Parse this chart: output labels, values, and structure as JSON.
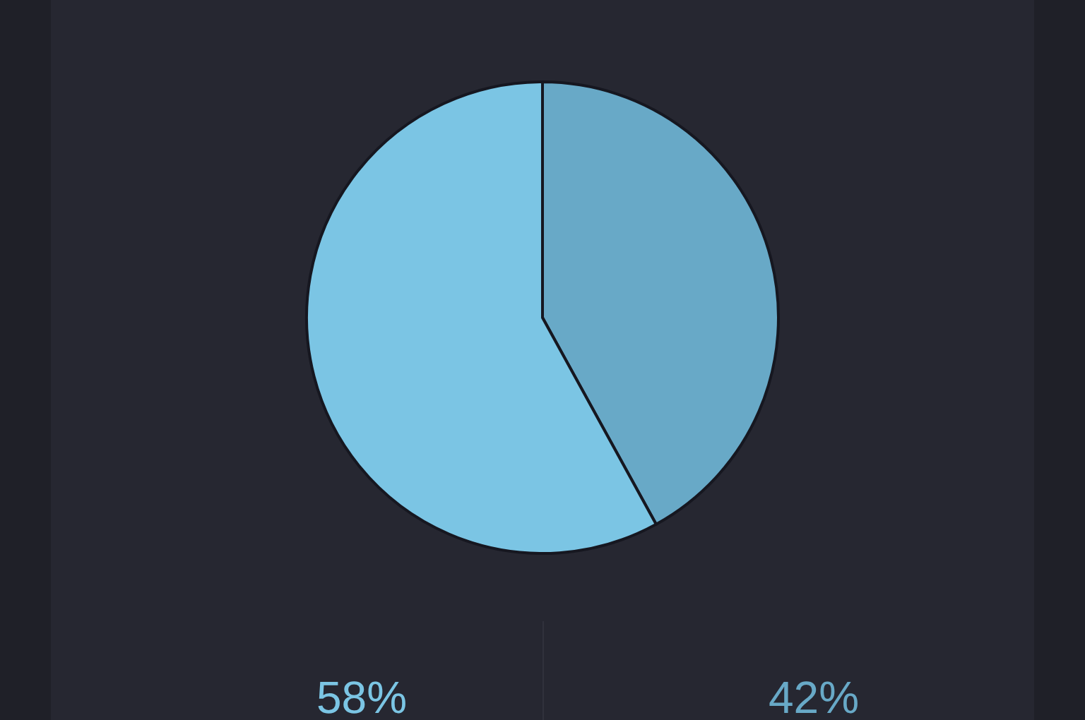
{
  "chart_data": {
    "type": "pie",
    "categories": [
      null,
      null
    ],
    "values": [
      42,
      58
    ],
    "colors": [
      "#68a9c7",
      "#7bc5e4"
    ],
    "value_labels": [
      "42%",
      "58%"
    ]
  }
}
